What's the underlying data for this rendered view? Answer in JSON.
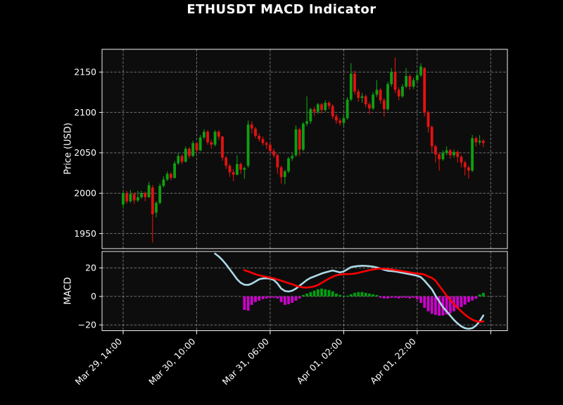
{
  "colors": {
    "background": "#000000",
    "panel_background": "#0d0d0d",
    "border": "#f0f0f0",
    "grid": "#d9d9d9",
    "text": "#ffffff",
    "candle_up": "#0fa00f",
    "candle_down": "#e41212",
    "macd_line": "#add8e6",
    "signal_line": "#ff0000",
    "hist_positive": "#00a010",
    "hist_negative": "#cc00cc"
  },
  "chart_data": [
    {
      "type": "candlestick",
      "title": "ETHUSDT MACD Indicator",
      "ylabel": "Price (USD)",
      "y_ticks": [
        1950,
        2000,
        2050,
        2100,
        2150
      ],
      "ylim": [
        1931,
        2178
      ],
      "grid": true,
      "x_tick_labels": [
        "Mar 29, 14:00",
        "Mar 30, 10:00",
        "Mar 31, 06:00",
        "Apr 01, 02:00",
        "Apr 01, 22:00",
        ""
      ],
      "x_tick_indices": [
        0,
        20,
        40,
        60,
        80,
        100
      ],
      "open": [
        1986,
        2000,
        1990,
        1999,
        1991,
        1995,
        2000,
        1995,
        2007,
        1976,
        1988,
        2009,
        2017,
        2024,
        2019,
        2037,
        2046,
        2039,
        2055,
        2046,
        2062,
        2053,
        2069,
        2076,
        2063,
        2060,
        2076,
        2070,
        2044,
        2034,
        2026,
        2023,
        2036,
        2029,
        2034,
        2085,
        2080,
        2071,
        2067,
        2062,
        2060,
        2052,
        2047,
        2032,
        2020,
        2027,
        2043,
        2047,
        2079,
        2054,
        2086,
        2089,
        2104,
        2101,
        2110,
        2103,
        2112,
        2108,
        2095,
        2090,
        2087,
        2093,
        2116,
        2148,
        2126,
        2118,
        2120,
        2110,
        2105,
        2122,
        2128,
        2115,
        2104,
        2135,
        2150,
        2128,
        2120,
        2132,
        2145,
        2132,
        2140,
        2146,
        2155,
        2100,
        2082,
        2058,
        2048,
        2042,
        2050,
        2053,
        2047,
        2051,
        2045,
        2038,
        2032,
        2028,
        2068,
        2063,
        2065
      ],
      "high": [
        2002,
        2003,
        2004,
        2001,
        2003,
        2003,
        2002,
        2014,
        2010,
        1990,
        2012,
        2021,
        2027,
        2026,
        2040,
        2050,
        2048,
        2058,
        2057,
        2065,
        2064,
        2072,
        2079,
        2078,
        2066,
        2078,
        2078,
        2071,
        2046,
        2036,
        2030,
        2047,
        2038,
        2033,
        2090,
        2089,
        2082,
        2074,
        2070,
        2064,
        2062,
        2055,
        2049,
        2034,
        2029,
        2045,
        2049,
        2084,
        2081,
        2088,
        2120,
        2106,
        2107,
        2112,
        2112,
        2115,
        2114,
        2110,
        2098,
        2093,
        2096,
        2119,
        2161,
        2152,
        2129,
        2124,
        2122,
        2113,
        2125,
        2140,
        2130,
        2118,
        2138,
        2155,
        2168,
        2131,
        2135,
        2155,
        2147,
        2143,
        2150,
        2161,
        2156,
        2102,
        2084,
        2060,
        2050,
        2053,
        2058,
        2055,
        2054,
        2053,
        2047,
        2040,
        2034,
        2072,
        2070,
        2072,
        2067
      ],
      "low": [
        1981,
        1987,
        1988,
        1987,
        1989,
        1993,
        1990,
        1994,
        1939,
        1970,
        1986,
        2007,
        2015,
        2016,
        2018,
        2035,
        2036,
        2038,
        2043,
        2045,
        2050,
        2052,
        2067,
        2060,
        2055,
        2058,
        2066,
        2040,
        2030,
        2020,
        2015,
        2022,
        2024,
        2018,
        2031,
        2074,
        2068,
        2064,
        2059,
        2055,
        2049,
        2044,
        2024,
        2012,
        2011,
        2025,
        2040,
        2045,
        2046,
        2052,
        2083,
        2086,
        2096,
        2098,
        2099,
        2101,
        2104,
        2092,
        2086,
        2084,
        2083,
        2091,
        2114,
        2122,
        2113,
        2112,
        2106,
        2098,
        2103,
        2119,
        2111,
        2095,
        2102,
        2132,
        2124,
        2115,
        2118,
        2130,
        2128,
        2129,
        2138,
        2144,
        2095,
        2075,
        2050,
        2038,
        2028,
        2040,
        2047,
        2043,
        2044,
        2038,
        2032,
        2022,
        2018,
        2026,
        2058,
        2060,
        2057
      ],
      "close": [
        2000,
        1990,
        1999,
        1991,
        1995,
        2000,
        1995,
        2010,
        1974,
        1988,
        2009,
        2017,
        2024,
        2019,
        2037,
        2046,
        2039,
        2055,
        2046,
        2062,
        2053,
        2069,
        2076,
        2063,
        2060,
        2076,
        2070,
        2044,
        2034,
        2026,
        2023,
        2036,
        2029,
        2031,
        2085,
        2080,
        2071,
        2067,
        2062,
        2060,
        2052,
        2047,
        2032,
        2020,
        2027,
        2043,
        2046,
        2079,
        2054,
        2086,
        2089,
        2104,
        2101,
        2110,
        2103,
        2112,
        2108,
        2095,
        2090,
        2087,
        2093,
        2116,
        2148,
        2126,
        2118,
        2120,
        2110,
        2105,
        2122,
        2128,
        2115,
        2104,
        2135,
        2150,
        2128,
        2120,
        2132,
        2145,
        2132,
        2140,
        2146,
        2157,
        2100,
        2082,
        2058,
        2048,
        2042,
        2050,
        2053,
        2047,
        2051,
        2045,
        2038,
        2032,
        2028,
        2068,
        2063,
        2065,
        2062
      ]
    },
    {
      "type": "macd",
      "ylabel": "MACD",
      "y_ticks": [
        -20,
        0,
        20
      ],
      "ylim": [
        -24,
        31.5
      ],
      "grid": true,
      "series": [
        {
          "name": "macd_line",
          "start_index": 25,
          "values": [
            30.0,
            28.0,
            25.5,
            22.5,
            19.0,
            15.5,
            12.0,
            9.5,
            8.2,
            8.0,
            9.0,
            10.5,
            12.0,
            12.6,
            12.7,
            12.5,
            11.5,
            9.0,
            5.5,
            3.8,
            3.4,
            4.0,
            5.5,
            7.5,
            9.5,
            11.5,
            13.0,
            14.0,
            15.0,
            16.0,
            16.8,
            17.5,
            18.2,
            17.5,
            16.8,
            17.5,
            19.0,
            20.5,
            21.0,
            21.3,
            21.5,
            21.4,
            21.2,
            20.8,
            20.3,
            19.5,
            18.7,
            18.0,
            17.8,
            17.5,
            17.0,
            16.5,
            16.0,
            15.5,
            15.0,
            14.5,
            13.5,
            11.0,
            8.0,
            5.0,
            0.5,
            -3.5,
            -7.5,
            -10.5,
            -13.5,
            -16.5,
            -19.0,
            -21.0,
            -22.3,
            -22.8,
            -22.3,
            -20.5,
            -17.5,
            -13.4
          ]
        },
        {
          "name": "signal_line",
          "start_index": 33,
          "values": [
            18.4,
            17.5,
            16.5,
            15.5,
            14.8,
            14.2,
            13.7,
            13.2,
            12.6,
            11.8,
            11.0,
            10.2,
            9.3,
            8.5,
            7.5,
            6.8,
            6.3,
            6.2,
            6.5,
            7.0,
            8.0,
            9.5,
            11.0,
            12.5,
            13.8,
            14.8,
            15.3,
            15.6,
            15.6,
            15.7,
            16.0,
            16.5,
            17.2,
            17.8,
            18.4,
            18.9,
            19.3,
            19.5,
            19.4,
            19.2,
            18.9,
            18.5,
            18.1,
            17.7,
            17.3,
            16.8,
            16.4,
            16.0,
            15.8,
            15.3,
            14.0,
            13.0,
            11.0,
            7.5,
            4.0,
            0.5,
            -2.5,
            -5.5,
            -8.0,
            -10.5,
            -12.8,
            -14.8,
            -16.3,
            -17.4,
            -17.9,
            -17.5
          ]
        },
        {
          "name": "histogram",
          "start_index": 33,
          "values": [
            -9.5,
            -10.0,
            -6.0,
            -4.0,
            -3.0,
            -2.0,
            -1.5,
            -1.2,
            -1.0,
            -1.5,
            -4.0,
            -6.0,
            -5.5,
            -4.5,
            -3.0,
            -1.5,
            1.0,
            2.0,
            3.0,
            4.0,
            5.0,
            5.5,
            5.0,
            4.5,
            3.5,
            2.0,
            1.0,
            0.5,
            0.5,
            1.5,
            2.5,
            3.0,
            3.0,
            2.5,
            2.0,
            1.5,
            1.0,
            -1.0,
            -1.5,
            -1.5,
            -1.0,
            -1.0,
            -1.5,
            -1.0,
            -1.0,
            -1.5,
            -1.0,
            -2.0,
            -4.6,
            -8.0,
            -10.5,
            -12.2,
            -13.0,
            -13.6,
            -13.4,
            -12.7,
            -11.9,
            -10.5,
            -8.8,
            -7.5,
            -5.8,
            -4.0,
            -2.9,
            -1.7,
            1.4,
            2.5
          ]
        }
      ]
    }
  ]
}
